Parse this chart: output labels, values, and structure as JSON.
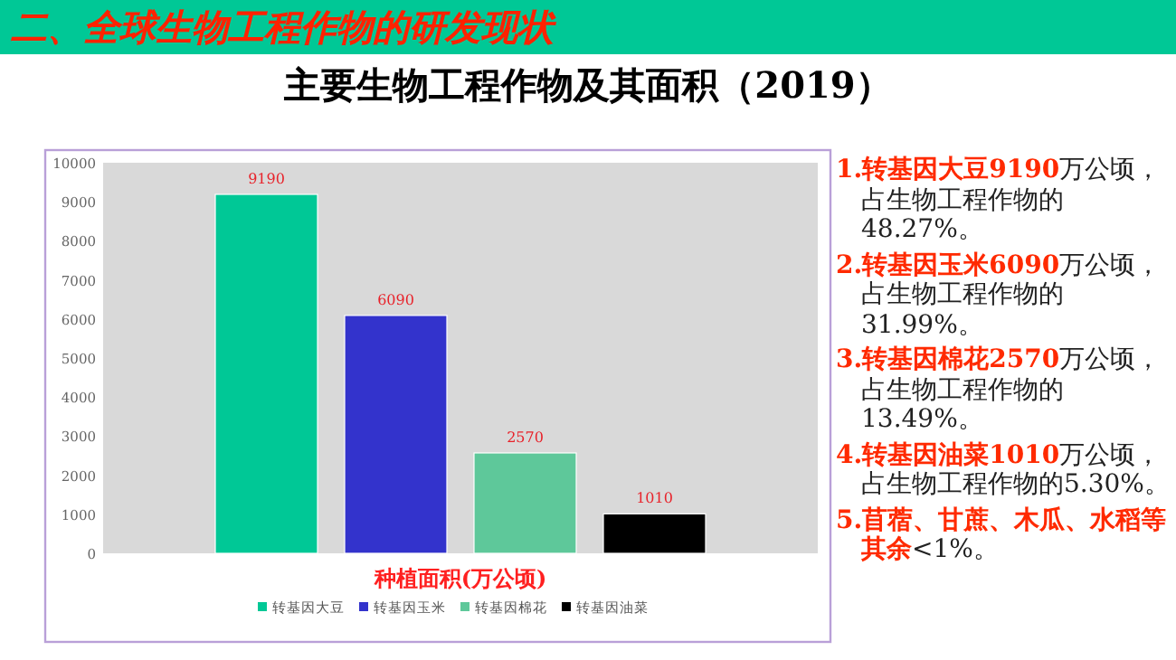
{
  "chart_data": {
    "type": "bar",
    "title": "主要生物工程作物及其面积（2019）",
    "xlabel": "种植面积(万公顷)",
    "categories": [
      null
    ],
    "series": [
      {
        "name": "转基因大豆",
        "color": "#00c896",
        "values": [
          9190
        ]
      },
      {
        "name": "转基因玉米",
        "color": "#3333cc",
        "values": [
          6090
        ]
      },
      {
        "name": "转基因棉花",
        "color": "#5ec89a",
        "values": [
          2570
        ]
      },
      {
        "name": "转基因油菜",
        "color": "#000000",
        "values": [
          1010
        ]
      }
    ],
    "ylim": [
      0,
      10000
    ],
    "yticks": [
      0,
      1000,
      2000,
      3000,
      4000,
      5000,
      6000,
      7000,
      8000,
      9000,
      10000
    ],
    "data_labels": true,
    "legend": "bottom",
    "grid": false,
    "annotations": [
      "二、全球生物工程作物的研发现状",
      "**1.转基因大豆9190**万公顷，占生物工程作物的48.27%。",
      "**2.转基因玉米6090**万公顷，占生物工程作物的31.99%。",
      "**3.转基因棉花2570**万公顷，占生物工程作物的13.49%。",
      "**4.转基因油菜1010**万公顷，占生物工程作物的5.30%。",
      "**5.苜蓿、甘蔗、木瓜、水稻等其余**<1%。"
    ]
  }
}
